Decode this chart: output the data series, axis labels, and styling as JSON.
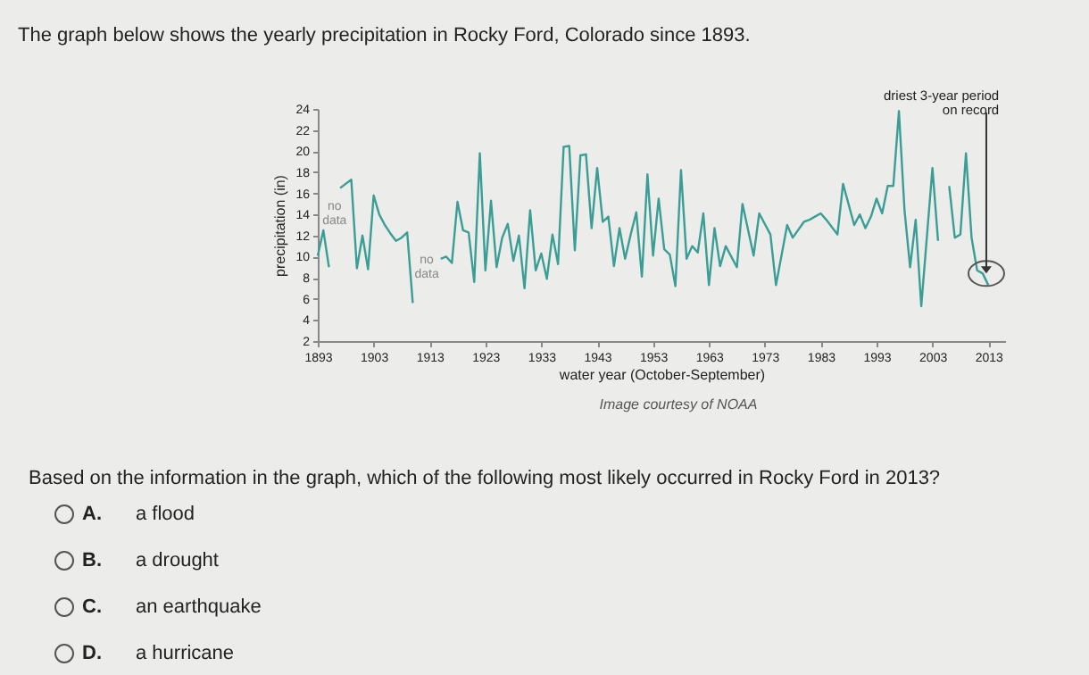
{
  "chart_data": {
    "type": "line",
    "title": "The graph below shows the yearly precipitation in Rocky Ford, Colorado since 1893.",
    "xlabel": "water year (October-September)",
    "ylabel": "precipitation (in)",
    "x": [
      1893,
      1894,
      1895,
      1896,
      1897,
      1898,
      1899,
      1900,
      1901,
      1902,
      1903,
      1904,
      1905,
      1906,
      1907,
      1908,
      1909,
      1910,
      1911,
      1912,
      1913,
      1914,
      1915,
      1916,
      1917,
      1918,
      1919,
      1920,
      1921,
      1922,
      1923,
      1924,
      1925,
      1926,
      1927,
      1928,
      1929,
      1930,
      1931,
      1932,
      1933,
      1934,
      1935,
      1936,
      1937,
      1938,
      1939,
      1940,
      1941,
      1942,
      1943,
      1944,
      1945,
      1946,
      1947,
      1948,
      1949,
      1950,
      1951,
      1952,
      1953,
      1954,
      1955,
      1956,
      1957,
      1958,
      1959,
      1960,
      1961,
      1962,
      1963,
      1964,
      1965,
      1966,
      1968,
      1969,
      1971,
      1972,
      1974,
      1975,
      1977,
      1978,
      1980,
      1981,
      1983,
      1984,
      1986,
      1987,
      1989,
      1990,
      1991,
      1992,
      1993,
      1994,
      1995,
      1996,
      1997,
      1998,
      1999,
      2000,
      2001,
      2003,
      2004,
      2005,
      2006,
      2007,
      2008,
      2009,
      2010,
      2011,
      2012,
      2013
    ],
    "series": [
      {
        "color": "#3a9e96",
        "values": [
          10.1,
          12.5,
          9.0,
          null,
          16.5,
          16.9,
          17.3,
          8.9,
          12.0,
          8.8,
          15.8,
          14.0,
          13.0,
          12.2,
          11.5,
          11.8,
          12.3,
          5.6,
          null,
          null,
          null,
          null,
          9.8,
          10.0,
          9.4,
          15.2,
          12.5,
          12.3,
          7.6,
          19.8,
          8.7,
          15.3,
          9.0,
          11.8,
          13.1,
          9.6,
          12.0,
          7.0,
          14.4,
          8.7,
          10.3,
          7.9,
          12.1,
          9.3,
          20.4,
          20.5,
          10.6,
          19.6,
          19.7,
          12.7,
          18.4,
          13.3,
          13.8,
          9.1,
          12.7,
          9.8,
          12.1,
          14.2,
          8.1,
          17.8,
          10.1,
          15.5,
          10.7,
          10.2,
          7.2,
          18.2,
          9.8,
          11.0,
          10.4,
          14.1,
          7.3,
          12.7,
          9.1,
          11.0,
          9.0,
          15.0,
          10.1,
          14.1,
          12.1,
          7.3,
          13.0,
          11.8,
          13.3,
          13.5,
          14.1,
          13.5,
          12.1,
          16.9,
          13.0,
          14.0,
          12.7,
          13.8,
          15.5,
          14.1,
          16.7,
          16.7,
          23.8,
          14.4,
          9.0,
          13.5,
          5.3,
          18.4,
          11.5,
          null,
          16.7,
          11.8,
          12.1,
          19.8,
          11.8,
          8.7,
          8.4,
          7.3
        ]
      }
    ],
    "xlim": [
      1893,
      2016
    ],
    "xticks": [
      1893,
      1903,
      1913,
      1923,
      1933,
      1943,
      1953,
      1963,
      1973,
      1983,
      1993,
      2003,
      2013
    ],
    "ylim": [
      2,
      24
    ],
    "yticks": [
      2,
      4,
      6,
      8,
      10,
      12,
      14,
      16,
      18,
      20,
      22,
      24
    ],
    "grid": false,
    "legend": false,
    "marker": "none",
    "line_style": "solid",
    "annotations": [
      "no data",
      "no data",
      {
        "text": "driest 3-year period on record",
        "x": 2012,
        "y": 8.4
      },
      "Image courtesy of NOAA",
      "Based on the information in the graph, which of the following most likely occurred in Rocky Ford in 2013?",
      "A. a flood",
      "B. a drought",
      "C. an earthquake",
      "D. a hurricane"
    ]
  }
}
